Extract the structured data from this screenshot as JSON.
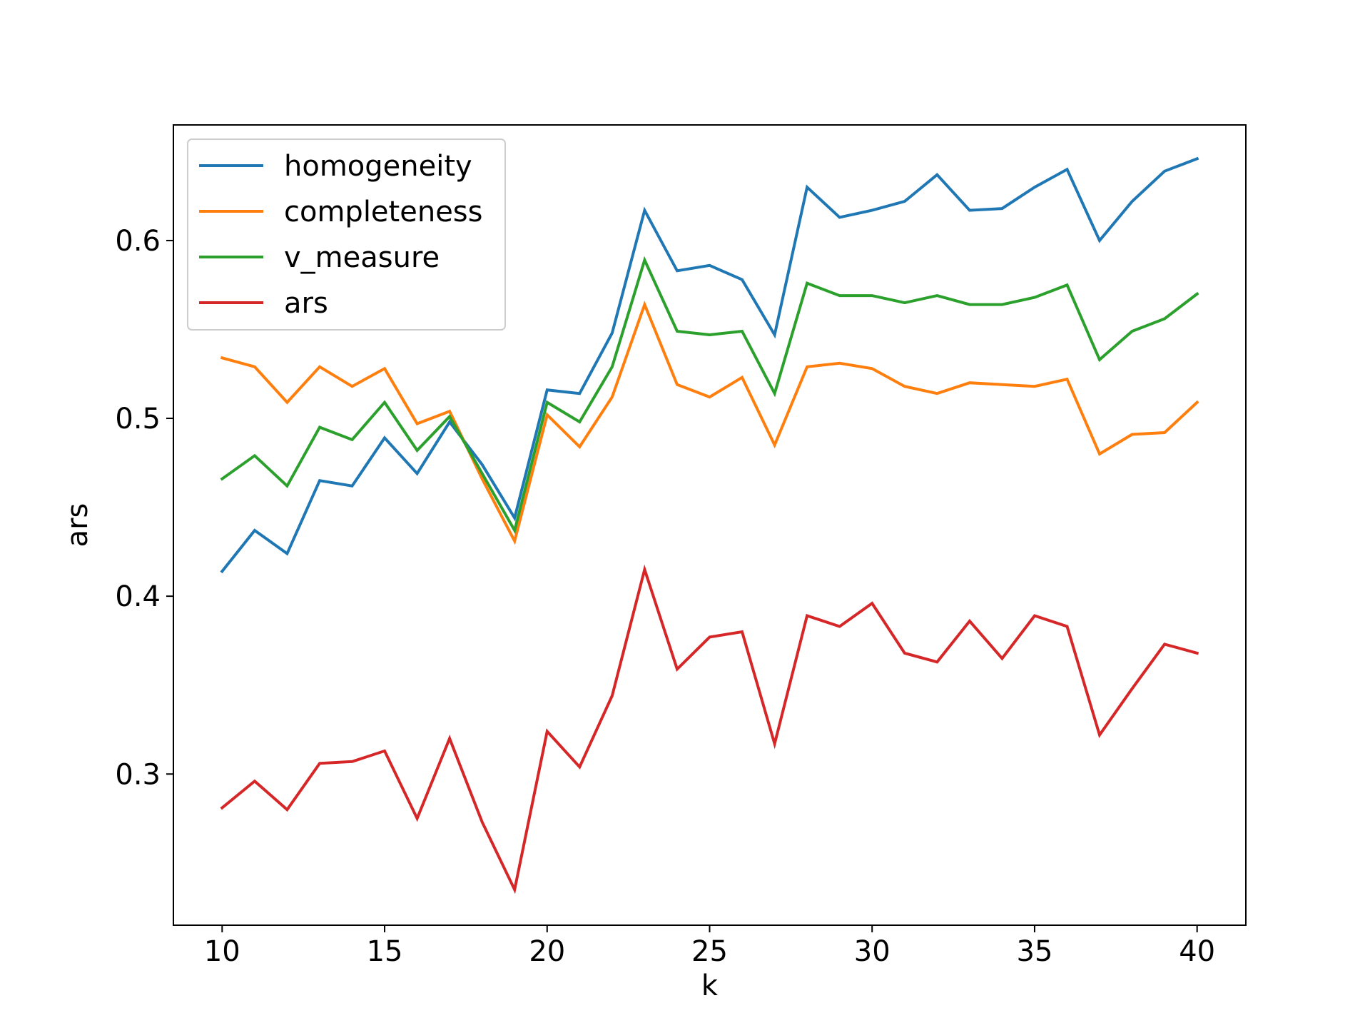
{
  "chart_data": {
    "type": "line",
    "xlabel": "k",
    "ylabel": "ars",
    "xlim": [
      8.5,
      41.5
    ],
    "ylim": [
      0.215,
      0.665
    ],
    "xticks": [
      10,
      15,
      20,
      25,
      30,
      35,
      40
    ],
    "yticks": [
      0.3,
      0.4,
      0.5,
      0.6
    ],
    "x": [
      10,
      11,
      12,
      13,
      14,
      15,
      16,
      17,
      18,
      19,
      20,
      21,
      22,
      23,
      24,
      25,
      26,
      27,
      28,
      29,
      30,
      31,
      32,
      33,
      34,
      35,
      36,
      37,
      38,
      39,
      40
    ],
    "legend_position": "upper-left",
    "grid": false,
    "series": [
      {
        "name": "homogeneity",
        "color": "#1f77b4",
        "values": [
          0.414,
          0.437,
          0.424,
          0.465,
          0.462,
          0.489,
          0.469,
          0.498,
          0.474,
          0.444,
          0.516,
          0.514,
          0.548,
          0.617,
          0.583,
          0.586,
          0.578,
          0.547,
          0.63,
          0.613,
          0.617,
          0.622,
          0.637,
          0.617,
          0.618,
          0.63,
          0.64,
          0.6,
          0.622,
          0.639,
          0.646
        ]
      },
      {
        "name": "completeness",
        "color": "#ff7f0e",
        "values": [
          0.534,
          0.529,
          0.509,
          0.529,
          0.518,
          0.528,
          0.497,
          0.504,
          0.466,
          0.431,
          0.502,
          0.484,
          0.512,
          0.564,
          0.519,
          0.512,
          0.523,
          0.485,
          0.529,
          0.531,
          0.528,
          0.518,
          0.514,
          0.52,
          0.519,
          0.518,
          0.522,
          0.48,
          0.491,
          0.492,
          0.509
        ]
      },
      {
        "name": "v_measure",
        "color": "#2ca02c",
        "values": [
          0.466,
          0.479,
          0.462,
          0.495,
          0.488,
          0.509,
          0.482,
          0.501,
          0.469,
          0.437,
          0.509,
          0.498,
          0.529,
          0.589,
          0.549,
          0.547,
          0.549,
          0.514,
          0.576,
          0.569,
          0.569,
          0.565,
          0.569,
          0.564,
          0.564,
          0.568,
          0.575,
          0.533,
          0.549,
          0.556,
          0.57
        ]
      },
      {
        "name": "ars",
        "color": "#d62728",
        "values": [
          0.281,
          0.296,
          0.28,
          0.306,
          0.307,
          0.313,
          0.275,
          0.32,
          0.273,
          0.235,
          0.324,
          0.304,
          0.344,
          0.415,
          0.359,
          0.377,
          0.38,
          0.317,
          0.389,
          0.383,
          0.396,
          0.368,
          0.363,
          0.386,
          0.365,
          0.389,
          0.383,
          0.322,
          0.348,
          0.373,
          0.368
        ]
      }
    ]
  }
}
